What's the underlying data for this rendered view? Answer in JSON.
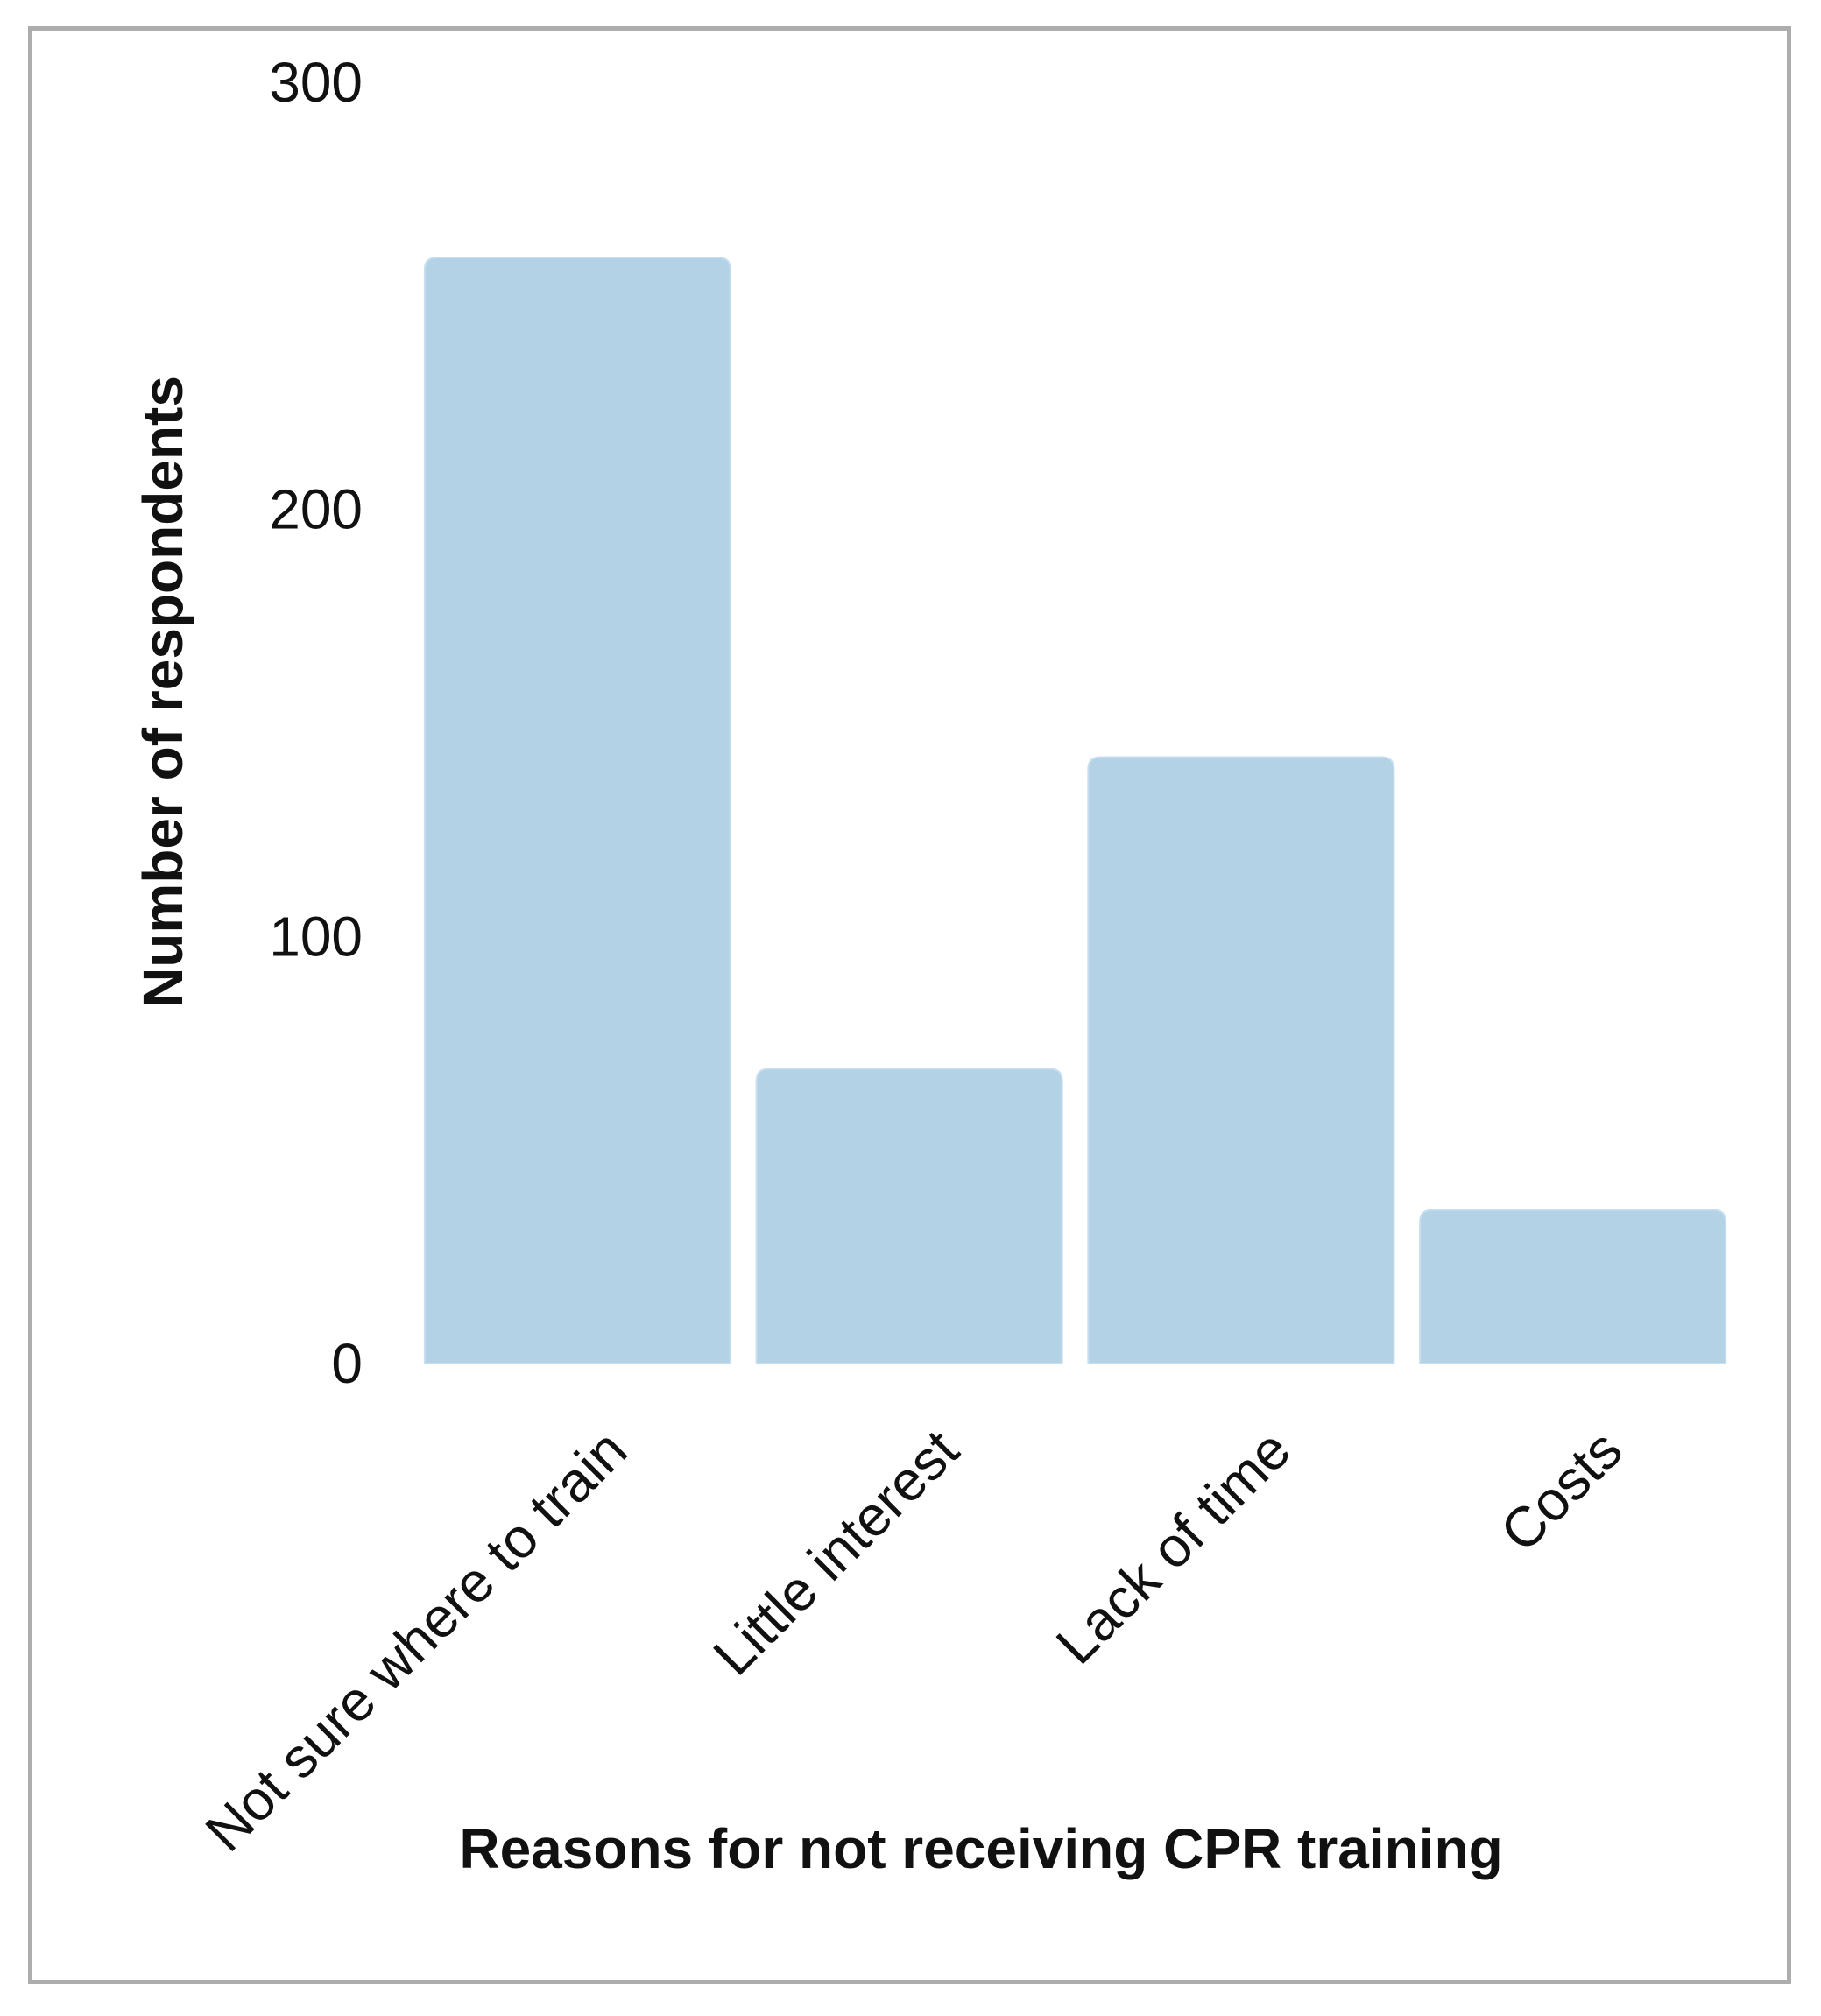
{
  "chart_data": {
    "type": "bar",
    "title": "",
    "xlabel": "Reasons for not receiving CPR  training",
    "ylabel": "Number of respondents",
    "categories": [
      "Not sure where to train",
      "Little interest",
      "Lack of time",
      "Costs"
    ],
    "values": [
      259,
      69,
      142,
      36
    ],
    "ylim": [
      0,
      300
    ],
    "yticks": [
      0,
      100,
      200,
      300
    ],
    "grid": false,
    "legend": "none",
    "bar_color": "#b3d2e5"
  }
}
